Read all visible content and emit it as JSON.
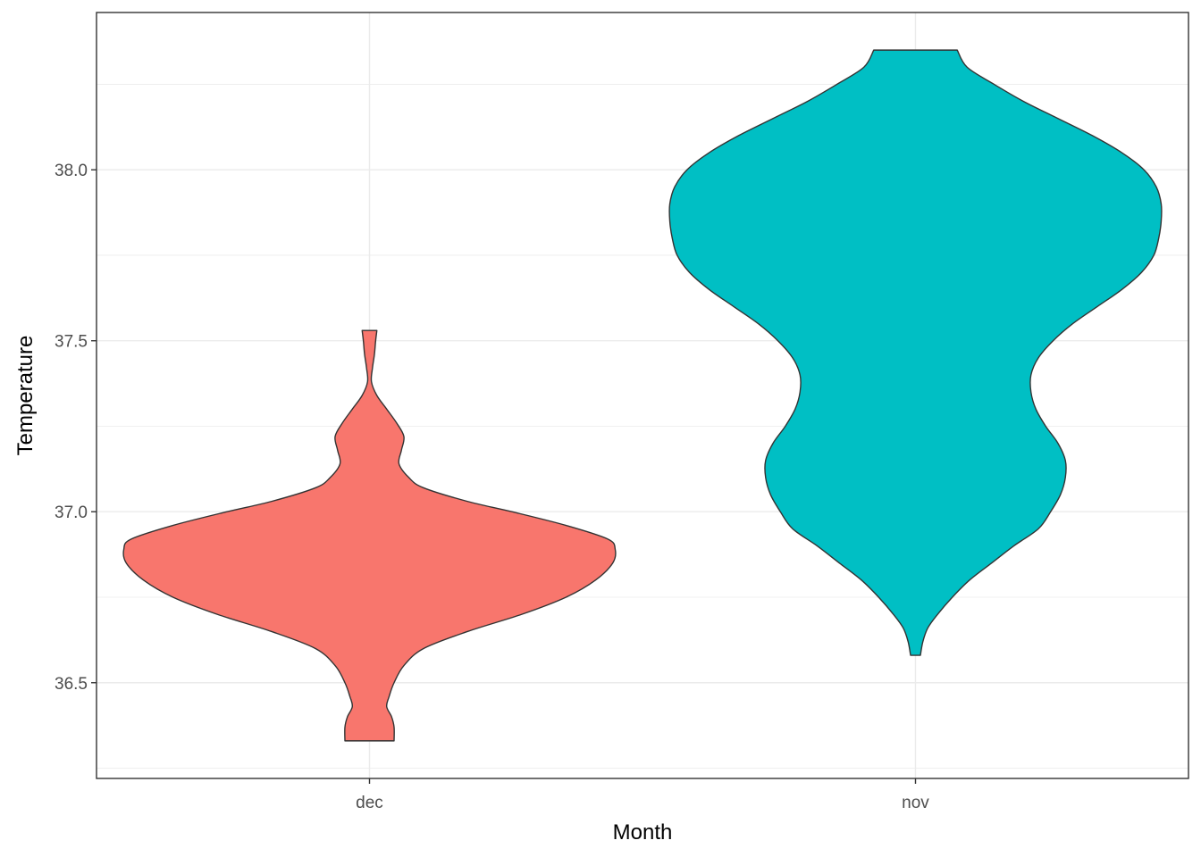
{
  "chart_data": {
    "type": "violin",
    "xlabel": "Month",
    "ylabel": "Temperature",
    "categories": [
      "dec",
      "nov"
    ],
    "ylim": [
      36.22,
      38.46
    ],
    "yticks": [
      36.5,
      37.0,
      37.5,
      38.0
    ],
    "ytick_labels": [
      "36.5",
      "37.0",
      "37.5",
      "38.0"
    ],
    "grid": true,
    "colors": {
      "dec": "#F8766D",
      "nov": "#00BFC4",
      "outline": "#333333",
      "panel_border": "#333333",
      "grid": "#EBEBEB"
    },
    "series": [
      {
        "category": "dec",
        "min": 36.33,
        "max": 37.53,
        "density_profile": [
          [
            36.33,
            0.1
          ],
          [
            36.37,
            0.1
          ],
          [
            36.4,
            0.09
          ],
          [
            36.43,
            0.07
          ],
          [
            36.46,
            0.08
          ],
          [
            36.5,
            0.1
          ],
          [
            36.55,
            0.14
          ],
          [
            36.6,
            0.22
          ],
          [
            36.65,
            0.4
          ],
          [
            36.7,
            0.62
          ],
          [
            36.75,
            0.8
          ],
          [
            36.8,
            0.92
          ],
          [
            36.85,
            0.99
          ],
          [
            36.89,
            1.0
          ],
          [
            36.92,
            0.97
          ],
          [
            36.96,
            0.8
          ],
          [
            37.0,
            0.58
          ],
          [
            37.03,
            0.4
          ],
          [
            37.07,
            0.22
          ],
          [
            37.1,
            0.16
          ],
          [
            37.14,
            0.12
          ],
          [
            37.18,
            0.13
          ],
          [
            37.22,
            0.14
          ],
          [
            37.26,
            0.11
          ],
          [
            37.3,
            0.07
          ],
          [
            37.34,
            0.03
          ],
          [
            37.38,
            0.008
          ],
          [
            37.42,
            0.012
          ],
          [
            37.46,
            0.02
          ],
          [
            37.5,
            0.025
          ],
          [
            37.53,
            0.03
          ]
        ]
      },
      {
        "category": "nov",
        "min": 36.58,
        "max": 38.35,
        "density_profile": [
          [
            36.58,
            0.02
          ],
          [
            36.62,
            0.03
          ],
          [
            36.66,
            0.05
          ],
          [
            36.7,
            0.09
          ],
          [
            36.75,
            0.15
          ],
          [
            36.8,
            0.22
          ],
          [
            36.85,
            0.31
          ],
          [
            36.9,
            0.4
          ],
          [
            36.95,
            0.5
          ],
          [
            37.0,
            0.55
          ],
          [
            37.05,
            0.59
          ],
          [
            37.1,
            0.61
          ],
          [
            37.15,
            0.61
          ],
          [
            37.2,
            0.58
          ],
          [
            37.25,
            0.53
          ],
          [
            37.3,
            0.49
          ],
          [
            37.35,
            0.47
          ],
          [
            37.4,
            0.47
          ],
          [
            37.45,
            0.5
          ],
          [
            37.5,
            0.56
          ],
          [
            37.55,
            0.64
          ],
          [
            37.6,
            0.74
          ],
          [
            37.65,
            0.84
          ],
          [
            37.7,
            0.92
          ],
          [
            37.75,
            0.97
          ],
          [
            37.8,
            0.99
          ],
          [
            37.85,
            1.0
          ],
          [
            37.9,
            1.0
          ],
          [
            37.95,
            0.98
          ],
          [
            38.0,
            0.93
          ],
          [
            38.05,
            0.84
          ],
          [
            38.1,
            0.72
          ],
          [
            38.15,
            0.58
          ],
          [
            38.2,
            0.44
          ],
          [
            38.25,
            0.32
          ],
          [
            38.3,
            0.21
          ],
          [
            38.35,
            0.17
          ]
        ]
      }
    ]
  }
}
